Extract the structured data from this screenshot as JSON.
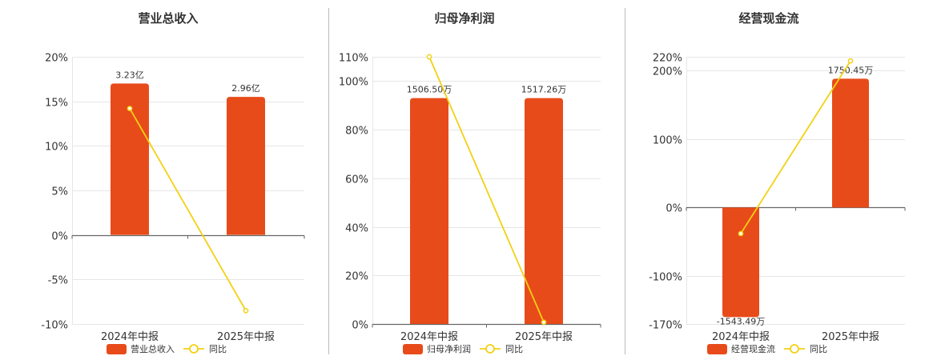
{
  "colors": {
    "bar": "#e84b1a",
    "line": "#f2d114",
    "grid": "#e6e6e6",
    "axis": "#666666",
    "divider": "#bbbbbb"
  },
  "chart_data": [
    {
      "type": "bar",
      "title": "营业总收入",
      "categories": [
        "2024年中报",
        "2025年中报"
      ],
      "series": [
        {
          "name": "营业总收入",
          "type": "bar",
          "axis_values": [
            17.0,
            15.5
          ],
          "labels": [
            "3.23亿",
            "2.96亿"
          ]
        },
        {
          "name": "同比",
          "type": "line",
          "values": [
            14.2,
            -8.5
          ]
        }
      ],
      "yticks": [
        "20%",
        "15%",
        "10%",
        "5%",
        "0%",
        "-5%",
        "-10%"
      ],
      "ytick_values": [
        20,
        15,
        10,
        5,
        0,
        -5,
        -10
      ],
      "ylim": [
        -10,
        20
      ],
      "legend": [
        "营业总收入",
        "同比"
      ]
    },
    {
      "type": "bar",
      "title": "归母净利润",
      "categories": [
        "2024年中报",
        "2025年中报"
      ],
      "series": [
        {
          "name": "归母净利润",
          "type": "bar",
          "axis_values": [
            93,
            93
          ],
          "labels": [
            "1506.50万",
            "1517.26万"
          ]
        },
        {
          "name": "同比",
          "type": "line",
          "values": [
            110,
            0.7
          ]
        }
      ],
      "yticks": [
        "110%",
        "100%",
        "80%",
        "60%",
        "40%",
        "20%",
        "0%"
      ],
      "ytick_values": [
        110,
        100,
        80,
        60,
        40,
        20,
        0
      ],
      "ylim": [
        0,
        110
      ],
      "legend": [
        "归母净利润",
        "同比"
      ]
    },
    {
      "type": "bar",
      "title": "经营现金流",
      "categories": [
        "2024年中报",
        "2025年中报"
      ],
      "series": [
        {
          "name": "经营现金流",
          "type": "bar",
          "axis_values": [
            -160,
            188
          ],
          "labels": [
            "-1543.49万",
            "1750.45万"
          ]
        },
        {
          "name": "同比",
          "type": "line",
          "values": [
            -38,
            214
          ]
        }
      ],
      "yticks": [
        "220%",
        "200%",
        "100%",
        "0%",
        "-100%",
        "-170%"
      ],
      "ytick_values": [
        220,
        200,
        100,
        0,
        -100,
        -170
      ],
      "ylim": [
        -170,
        220
      ],
      "legend": [
        "经营现金流",
        "同比"
      ]
    }
  ]
}
